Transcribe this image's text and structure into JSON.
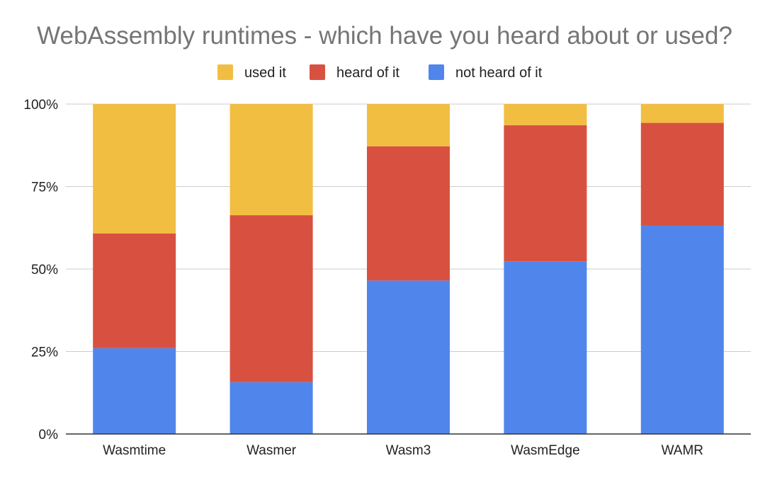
{
  "chart_data": {
    "type": "bar",
    "stacked": true,
    "percent": true,
    "title": "WebAssembly runtimes - which have you heard about or used?",
    "categories": [
      "Wasmtime",
      "Wasmer",
      "Wasm3",
      "WasmEdge",
      "WAMR"
    ],
    "series": [
      {
        "name": "not heard of it",
        "color": "#5086EC",
        "values": [
          26,
          15.7,
          46.5,
          52.3,
          63.2
        ]
      },
      {
        "name": "heard of it",
        "color": "#D85140",
        "values": [
          34.8,
          50.6,
          40.7,
          41.3,
          31.1
        ]
      },
      {
        "name": "used it",
        "color": "#F1BE42",
        "values": [
          39.2,
          33.7,
          12.8,
          6.4,
          5.7
        ]
      }
    ],
    "legend_order": [
      "used it",
      "heard of it",
      "not heard of it"
    ],
    "legend_position": "top",
    "ylim": [
      0,
      100
    ],
    "yticks": [
      "0%",
      "25%",
      "50%",
      "75%",
      "100%"
    ],
    "grid": true
  }
}
